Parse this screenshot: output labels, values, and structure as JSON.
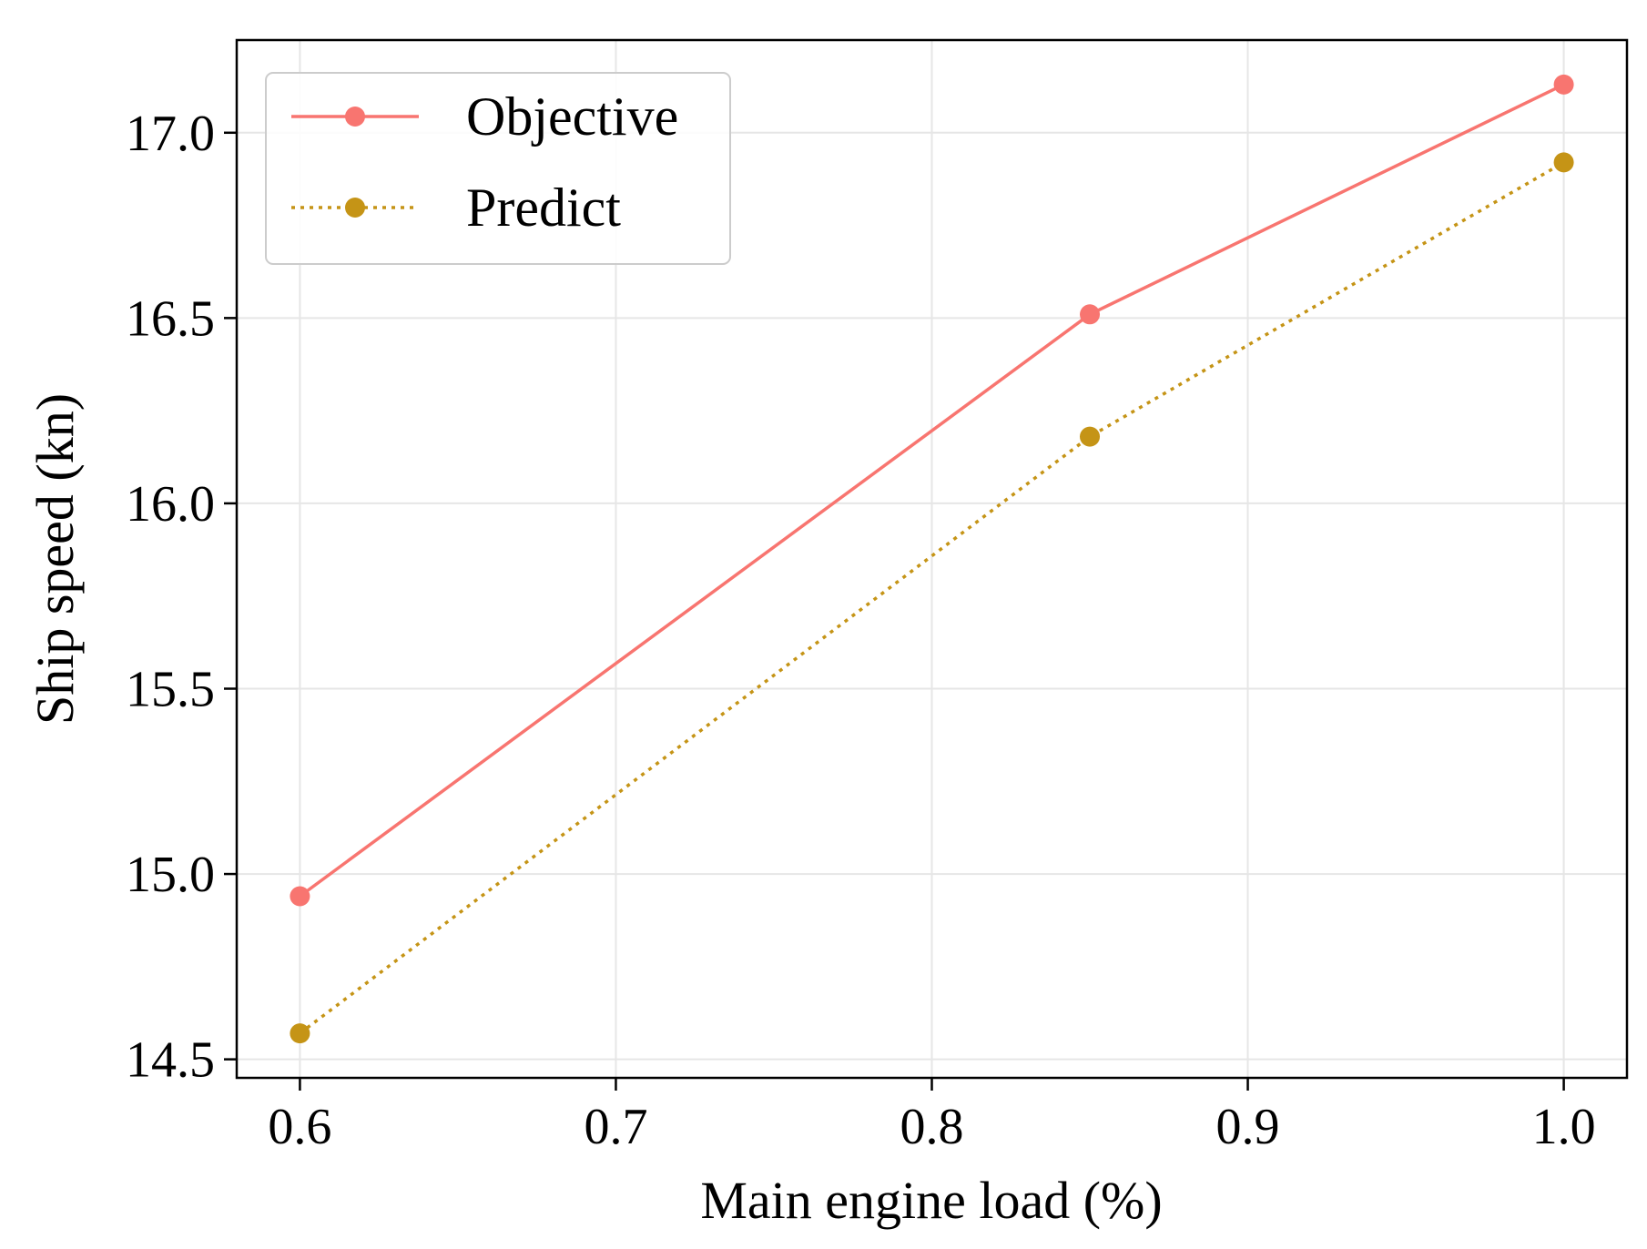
{
  "chart_data": {
    "type": "line",
    "title": "",
    "xlabel": "Main engine load (%)",
    "ylabel": "Ship speed (kn)",
    "xlim": [
      0.58,
      1.02
    ],
    "ylim": [
      14.45,
      17.25
    ],
    "grid": true,
    "legend_position": "top-left",
    "x_ticks": [
      0.6,
      0.7,
      0.8,
      0.9,
      1.0
    ],
    "x_tick_labels": [
      "0.6",
      "0.7",
      "0.8",
      "0.9",
      "1.0"
    ],
    "y_ticks": [
      14.5,
      15.0,
      15.5,
      16.0,
      16.5,
      17.0
    ],
    "y_tick_labels": [
      "14.5",
      "15.0",
      "15.5",
      "16.0",
      "16.5",
      "17.0"
    ],
    "series": [
      {
        "name": "Objective",
        "x": [
          0.6,
          0.85,
          1.0
        ],
        "values": [
          14.94,
          16.51,
          17.13
        ],
        "color": "#f87570",
        "line_style": "solid",
        "marker": "circle"
      },
      {
        "name": "Predict",
        "x": [
          0.6,
          0.85,
          1.0
        ],
        "values": [
          14.57,
          16.18,
          16.92
        ],
        "color": "#c59416",
        "line_style": "dotted",
        "marker": "circle"
      }
    ]
  }
}
